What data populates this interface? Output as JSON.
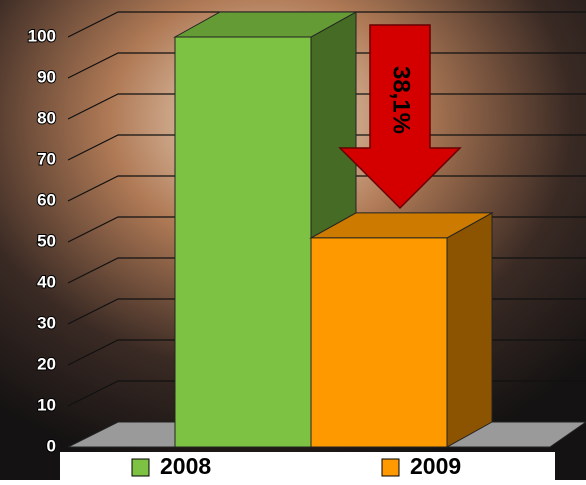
{
  "chart_data": {
    "type": "bar3d",
    "categories": [
      null
    ],
    "series": [
      {
        "name": "2008",
        "color": "#7dc242",
        "values": [
          100
        ]
      },
      {
        "name": "2009",
        "color": "#ff9900",
        "values": [
          51
        ]
      }
    ],
    "annotation": "38,1%",
    "ylim": [
      0,
      100
    ],
    "yticks": [
      0,
      10,
      20,
      30,
      40,
      50,
      60,
      70,
      80,
      90,
      100
    ],
    "grid": true
  }
}
